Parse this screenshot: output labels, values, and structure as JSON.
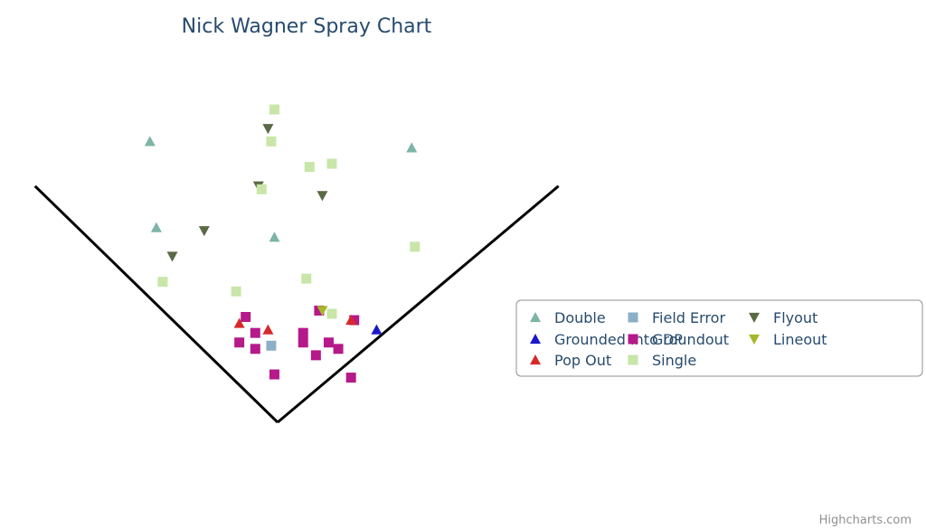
{
  "chart_data": {
    "type": "scatter",
    "title": "Nick Wagner Spray Chart",
    "xlim": [
      -9,
      10
    ],
    "ylim": [
      -1.2,
      11.5
    ],
    "grid": false,
    "legend_placement": "right",
    "field_lines": {
      "left_foul": [
        [
          0,
          0
        ],
        [
          -7.6,
          7.4
        ]
      ],
      "right_foul": [
        [
          0,
          0
        ],
        [
          8.8,
          7.4
        ]
      ]
    },
    "series": [
      {
        "name": "Double",
        "symbol": "triangle",
        "color": "#7cb5a6",
        "points": [
          [
            -4.0,
            8.8
          ],
          [
            -3.8,
            6.1
          ],
          [
            -0.1,
            5.8
          ],
          [
            4.2,
            8.6
          ]
        ]
      },
      {
        "name": "Field Error",
        "symbol": "square",
        "color": "#8bafc6",
        "points": [
          [
            -0.2,
            2.4
          ]
        ]
      },
      {
        "name": "Flyout",
        "symbol": "triangle-down",
        "color": "#5a6a45",
        "points": [
          [
            -0.3,
            9.2
          ],
          [
            -0.6,
            7.4
          ],
          [
            1.4,
            7.1
          ],
          [
            -2.3,
            6.0
          ],
          [
            -3.3,
            5.2
          ]
        ]
      },
      {
        "name": "Grounded Into DP",
        "symbol": "triangle",
        "color": "#1a18c8",
        "points": [
          [
            3.1,
            2.9
          ]
        ]
      },
      {
        "name": "Groundout",
        "symbol": "square",
        "color": "#b5198a",
        "points": [
          [
            -1.0,
            3.3
          ],
          [
            -0.7,
            2.8
          ],
          [
            -1.2,
            2.5
          ],
          [
            -0.7,
            2.3
          ],
          [
            0.8,
            2.8
          ],
          [
            0.8,
            2.5
          ],
          [
            1.3,
            3.5
          ],
          [
            1.6,
            2.5
          ],
          [
            1.9,
            2.3
          ],
          [
            1.2,
            2.1
          ],
          [
            2.4,
            3.2
          ],
          [
            -0.1,
            1.5
          ],
          [
            2.3,
            1.4
          ]
        ]
      },
      {
        "name": "Lineout",
        "symbol": "triangle-down",
        "color": "#a6b82a",
        "points": [
          [
            1.4,
            3.5
          ]
        ]
      },
      {
        "name": "Pop Out",
        "symbol": "triangle",
        "color": "#d62a2a",
        "points": [
          [
            -1.2,
            3.1
          ],
          [
            -0.3,
            2.9
          ],
          [
            2.3,
            3.2
          ]
        ]
      },
      {
        "name": "Single",
        "symbol": "square",
        "color": "#c8e6a8",
        "points": [
          [
            -0.1,
            9.8
          ],
          [
            -0.2,
            8.8
          ],
          [
            1.0,
            8.0
          ],
          [
            1.7,
            8.1
          ],
          [
            -0.5,
            7.3
          ],
          [
            4.3,
            5.5
          ],
          [
            -3.6,
            4.4
          ],
          [
            -1.3,
            4.1
          ],
          [
            0.9,
            4.5
          ],
          [
            1.7,
            3.4
          ]
        ]
      }
    ]
  },
  "credits": "Highcharts.com"
}
